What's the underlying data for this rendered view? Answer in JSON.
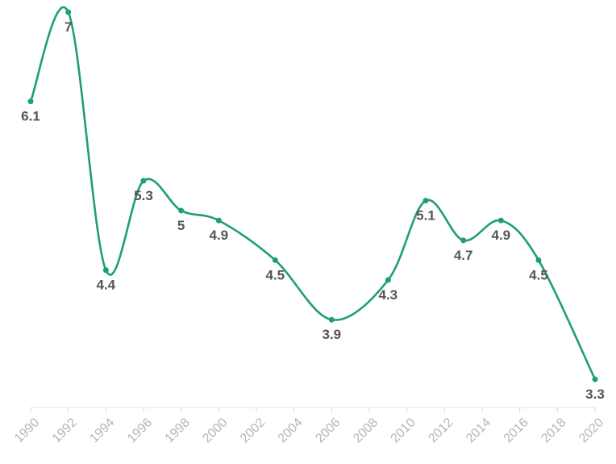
{
  "chart_data": {
    "type": "line",
    "title": "",
    "xlabel": "",
    "ylabel": "",
    "x": [
      1990,
      1992,
      1994,
      1996,
      1998,
      2000,
      2003,
      2006,
      2009,
      2011,
      2013,
      2015,
      2017,
      2020
    ],
    "series": [
      {
        "name": "",
        "values": [
          6.1,
          7,
          4.4,
          5.3,
          5,
          4.9,
          4.5,
          3.9,
          4.3,
          5.1,
          4.7,
          4.9,
          4.5,
          3.3
        ]
      }
    ],
    "data_labels": [
      "6.1",
      "7",
      "4.4",
      "5.3",
      "5",
      "4.9",
      "4.5",
      "3.9",
      "4.3",
      "5.1",
      "4.7",
      "4.9",
      "4.5",
      "3.3"
    ],
    "xticks": [
      "1990",
      "1992",
      "1994",
      "1996",
      "1998",
      "2000",
      "2002",
      "2004",
      "2006",
      "2008",
      "2010",
      "2012",
      "2014",
      "2016",
      "2018",
      "2020"
    ],
    "xlim": [
      1990,
      2020
    ],
    "ylim": [
      3.0,
      7.0
    ],
    "grid": false,
    "line_color": "#1f9e74",
    "smooth": true
  }
}
